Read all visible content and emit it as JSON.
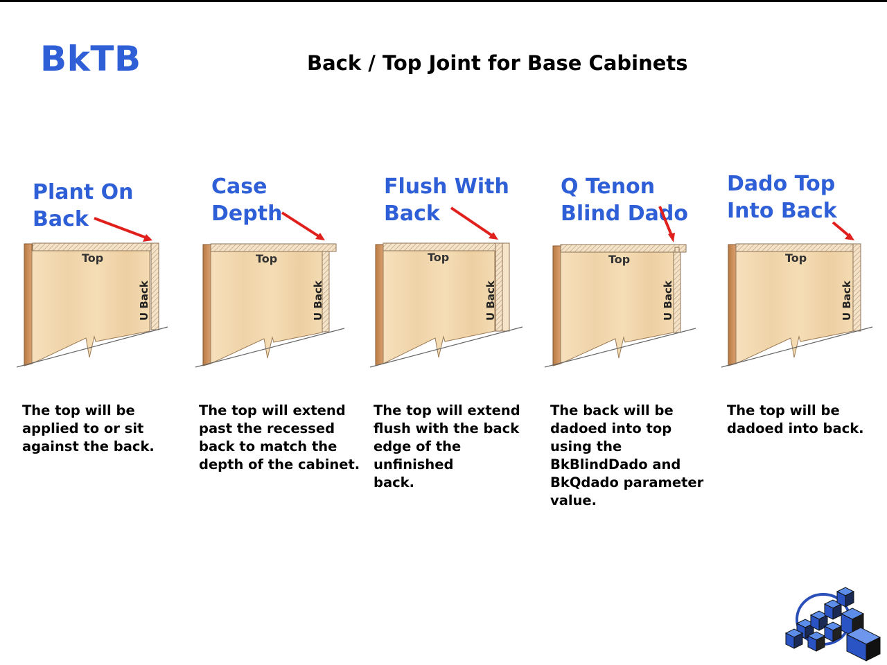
{
  "header": {
    "code": "BkTB",
    "title": "Back / Top Joint for Base Cabinets"
  },
  "options": [
    {
      "heading": "Plant On\nBack",
      "top_label": "Top",
      "back_label": "U Back",
      "description": "The top will be\napplied to or sit\nagainst the back."
    },
    {
      "heading": "Case\nDepth",
      "top_label": "Top",
      "back_label": "U Back",
      "description": "The top will extend\npast the recessed\nback to match the\ndepth of the cabinet."
    },
    {
      "heading": "Flush With\nBack",
      "top_label": "Top",
      "back_label": "U Back",
      "description": "The top will extend\nflush with the back\nedge of the unfinished\nback."
    },
    {
      "heading": "Q Tenon\nBlind Dado",
      "top_label": "Top",
      "back_label": "U Back",
      "description": "The back will be\ndadoed into top\nusing the\nBkBlindDado and\nBkQdado parameter\nvalue."
    },
    {
      "heading": "Dado Top\nInto Back",
      "top_label": "Top",
      "back_label": "U Back",
      "description": "The top will be\ndadoed into back."
    }
  ],
  "colors": {
    "accent_blue": "#2f5fd6",
    "arrow_red": "#e0201c",
    "wood_panel": "#f3dcb6",
    "wood_edge": "#c98f5a"
  },
  "icons": {
    "logo": "stacked-cubes-logo"
  }
}
